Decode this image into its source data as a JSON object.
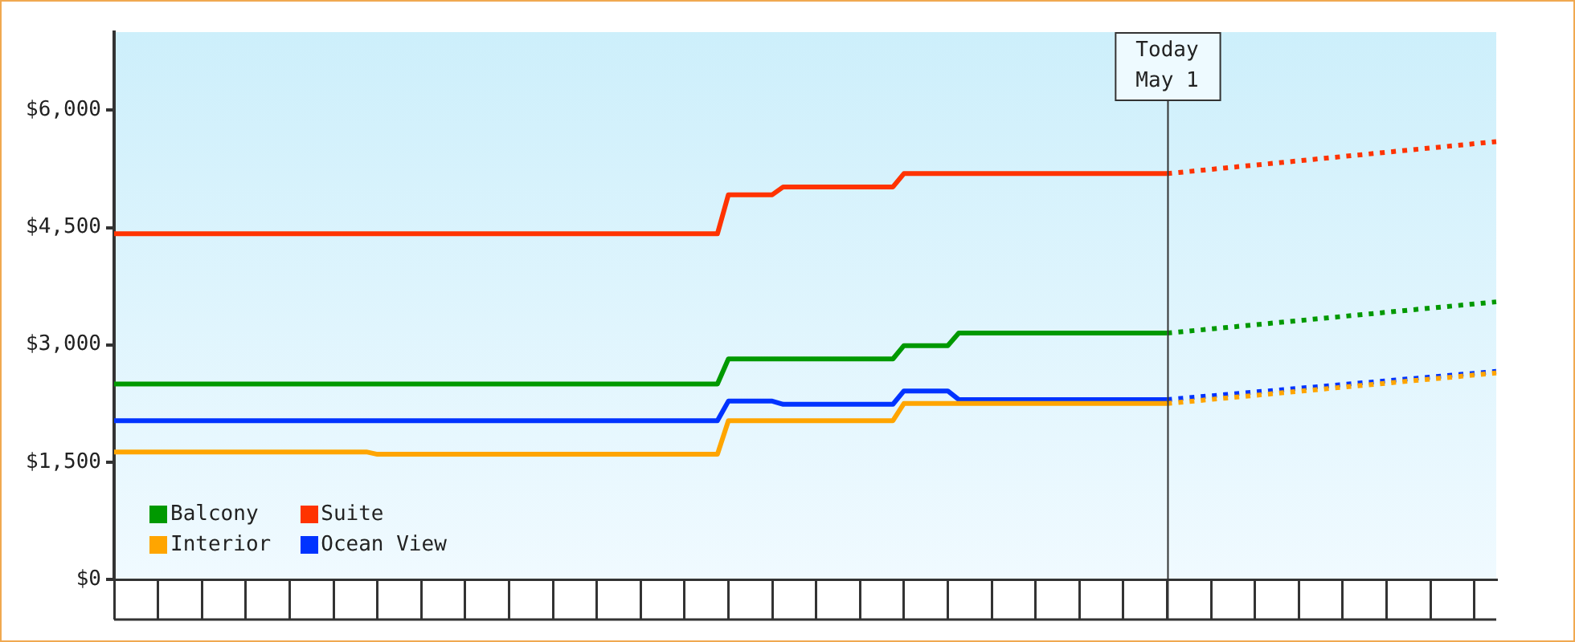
{
  "chart_data": {
    "type": "line",
    "categories": [
      null,
      null,
      null,
      null,
      null,
      null,
      null,
      null,
      null,
      null,
      null,
      null,
      null,
      null,
      null,
      null,
      null,
      null,
      null,
      null,
      null,
      null,
      null,
      null,
      null,
      null,
      null,
      null,
      null,
      null,
      null,
      null,
      null,
      null,
      null,
      null,
      null,
      null,
      null,
      null,
      null,
      null,
      null,
      null,
      null,
      null,
      null,
      null,
      null,
      null,
      null,
      null,
      null,
      null,
      null,
      null,
      null,
      null,
      null,
      null,
      null,
      null,
      null,
      null,
      null,
      null,
      null,
      null,
      null,
      null,
      null,
      null,
      null,
      null,
      null,
      null,
      null,
      null,
      null,
      null,
      null,
      null,
      null,
      null,
      null,
      null,
      null,
      null,
      null,
      null,
      null,
      null,
      null,
      null,
      null,
      null,
      null,
      null,
      null,
      null,
      null,
      null,
      null,
      null,
      null,
      null,
      null,
      null,
      null,
      null,
      null,
      null,
      null,
      null,
      null,
      null,
      null,
      null,
      null,
      null,
      null,
      null,
      null,
      null,
      null,
      null,
      null
    ],
    "ylim": [
      0,
      7000
    ],
    "yticks": [
      {
        "value": 0,
        "label": "$0"
      },
      {
        "value": 1500,
        "label": "$1,500"
      },
      {
        "value": 3000,
        "label": "$3,000"
      },
      {
        "value": 4500,
        "label": "$4,500"
      },
      {
        "value": 6000,
        "label": "$6,000"
      }
    ],
    "tick_labels": "y",
    "legend": "bottom left",
    "series": [
      {
        "name": "Balcony",
        "color": "#009900",
        "values": [
          2500,
          2500,
          2500,
          2500,
          2500,
          2500,
          2500,
          2500,
          2500,
          2500,
          2500,
          2500,
          2500,
          2500,
          2500,
          2500,
          2500,
          2500,
          2500,
          2500,
          2500,
          2500,
          2500,
          2500,
          2500,
          2500,
          2500,
          2500,
          2500,
          2500,
          2500,
          2500,
          2500,
          2500,
          2500,
          2500,
          2500,
          2500,
          2500,
          2500,
          2500,
          2500,
          2500,
          2500,
          2500,
          2500,
          2500,
          2500,
          2500,
          2500,
          2500,
          2500,
          2500,
          2500,
          2500,
          2500,
          2820,
          2820,
          2820,
          2820,
          2820,
          2820,
          2820,
          2820,
          2820,
          2820,
          2820,
          2820,
          2820,
          2820,
          2820,
          2820,
          2990,
          2990,
          2990,
          2990,
          2990,
          3150,
          3150,
          3150,
          3150,
          3150,
          3150,
          3150,
          3150,
          3150,
          3150,
          3150,
          3150,
          3150,
          3150,
          3150,
          3150,
          3150,
          3150,
          3150,
          3150,
          null,
          null,
          null,
          null,
          null,
          null,
          null,
          null,
          null,
          null,
          null,
          null,
          null,
          null,
          null,
          null,
          null,
          null,
          null,
          null,
          null,
          null,
          null,
          null,
          null,
          null,
          null,
          null,
          null,
          null
        ]
      },
      {
        "name": "Suite",
        "color": "#ff3300",
        "values": [
          4420,
          4420,
          4420,
          4420,
          4420,
          4420,
          4420,
          4420,
          4420,
          4420,
          4420,
          4420,
          4420,
          4420,
          4420,
          4420,
          4420,
          4420,
          4420,
          4420,
          4420,
          4420,
          4420,
          4420,
          4420,
          4420,
          4420,
          4420,
          4420,
          4420,
          4420,
          4420,
          4420,
          4420,
          4420,
          4420,
          4420,
          4420,
          4420,
          4420,
          4420,
          4420,
          4420,
          4420,
          4420,
          4420,
          4420,
          4420,
          4420,
          4420,
          4420,
          4420,
          4420,
          4420,
          4420,
          4420,
          4920,
          4920,
          4920,
          4920,
          4920,
          5020,
          5020,
          5020,
          5020,
          5020,
          5020,
          5020,
          5020,
          5020,
          5020,
          5020,
          5190,
          5190,
          5190,
          5190,
          5190,
          5190,
          5190,
          5190,
          5190,
          5190,
          5190,
          5190,
          5190,
          5190,
          5190,
          5190,
          5190,
          5190,
          5190,
          5190,
          5190,
          5190,
          5190,
          5190,
          5190,
          null,
          null,
          null,
          null,
          null,
          null,
          null,
          null,
          null,
          null,
          null,
          null,
          null,
          null,
          null,
          null,
          null,
          null,
          null,
          null,
          null,
          null,
          null,
          null,
          null,
          null,
          null,
          null,
          null,
          null
        ]
      },
      {
        "name": "Interior",
        "color": "#ffa500",
        "values": [
          1630,
          1630,
          1630,
          1630,
          1630,
          1630,
          1630,
          1630,
          1630,
          1630,
          1630,
          1630,
          1630,
          1630,
          1630,
          1630,
          1630,
          1630,
          1630,
          1630,
          1630,
          1630,
          1630,
          1630,
          1600,
          1600,
          1600,
          1600,
          1600,
          1600,
          1600,
          1600,
          1600,
          1600,
          1600,
          1600,
          1600,
          1600,
          1600,
          1600,
          1600,
          1600,
          1600,
          1600,
          1600,
          1600,
          1600,
          1600,
          1600,
          1600,
          1600,
          1600,
          1600,
          1600,
          1600,
          1600,
          2030,
          2030,
          2030,
          2030,
          2030,
          2030,
          2030,
          2030,
          2030,
          2030,
          2030,
          2030,
          2030,
          2030,
          2030,
          2030,
          2250,
          2250,
          2250,
          2250,
          2250,
          2250,
          2250,
          2250,
          2250,
          2250,
          2250,
          2250,
          2250,
          2250,
          2250,
          2250,
          2250,
          2250,
          2250,
          2250,
          2250,
          2250,
          2250,
          2250,
          2250,
          null,
          null,
          null,
          null,
          null,
          null,
          null,
          null,
          null,
          null,
          null,
          null,
          null,
          null,
          null,
          null,
          null,
          null,
          null,
          null,
          null,
          null,
          null,
          null,
          null,
          null,
          null,
          null,
          null,
          null
        ]
      },
      {
        "name": "Ocean View",
        "color": "#0033ff",
        "values": [
          2030,
          2030,
          2030,
          2030,
          2030,
          2030,
          2030,
          2030,
          2030,
          2030,
          2030,
          2030,
          2030,
          2030,
          2030,
          2030,
          2030,
          2030,
          2030,
          2030,
          2030,
          2030,
          2030,
          2030,
          2030,
          2030,
          2030,
          2030,
          2030,
          2030,
          2030,
          2030,
          2030,
          2030,
          2030,
          2030,
          2030,
          2030,
          2030,
          2030,
          2030,
          2030,
          2030,
          2030,
          2030,
          2030,
          2030,
          2030,
          2030,
          2030,
          2030,
          2030,
          2030,
          2030,
          2030,
          2030,
          2280,
          2280,
          2280,
          2280,
          2280,
          2240,
          2240,
          2240,
          2240,
          2240,
          2240,
          2240,
          2240,
          2240,
          2240,
          2240,
          2410,
          2410,
          2410,
          2410,
          2410,
          2300,
          2300,
          2300,
          2300,
          2300,
          2300,
          2300,
          2300,
          2300,
          2300,
          2300,
          2300,
          2300,
          2300,
          2300,
          2300,
          2300,
          2300,
          2300,
          2300,
          null,
          null,
          null,
          null,
          null,
          null,
          null,
          null,
          null,
          null,
          null,
          null,
          null,
          null,
          null,
          null,
          null,
          null,
          null,
          null,
          null,
          null,
          null,
          null,
          null,
          null,
          null,
          null,
          null,
          null
        ]
      },
      {
        "color": "#009900",
        "line_style": "dotted",
        "values": [
          null,
          null,
          null,
          null,
          null,
          null,
          null,
          null,
          null,
          null,
          null,
          null,
          null,
          null,
          null,
          null,
          null,
          null,
          null,
          null,
          null,
          null,
          null,
          null,
          null,
          null,
          null,
          null,
          null,
          null,
          null,
          null,
          null,
          null,
          null,
          null,
          null,
          null,
          null,
          null,
          null,
          null,
          null,
          null,
          null,
          null,
          null,
          null,
          null,
          null,
          null,
          null,
          null,
          null,
          null,
          null,
          null,
          null,
          null,
          null,
          null,
          null,
          null,
          null,
          null,
          null,
          null,
          null,
          null,
          null,
          null,
          null,
          null,
          null,
          null,
          null,
          null,
          null,
          null,
          null,
          null,
          null,
          null,
          null,
          null,
          null,
          null,
          null,
          null,
          null,
          null,
          null,
          null,
          null,
          null,
          null,
          3150,
          null,
          null,
          null,
          null,
          null,
          null,
          null,
          null,
          null,
          null,
          null,
          null,
          null,
          null,
          null,
          null,
          null,
          null,
          null,
          null,
          null,
          null,
          null,
          null,
          null,
          null,
          null,
          null,
          null,
          3550
        ]
      },
      {
        "color": "#ff3300",
        "line_style": "dotted",
        "values": [
          null,
          null,
          null,
          null,
          null,
          null,
          null,
          null,
          null,
          null,
          null,
          null,
          null,
          null,
          null,
          null,
          null,
          null,
          null,
          null,
          null,
          null,
          null,
          null,
          null,
          null,
          null,
          null,
          null,
          null,
          null,
          null,
          null,
          null,
          null,
          null,
          null,
          null,
          null,
          null,
          null,
          null,
          null,
          null,
          null,
          null,
          null,
          null,
          null,
          null,
          null,
          null,
          null,
          null,
          null,
          null,
          null,
          null,
          null,
          null,
          null,
          null,
          null,
          null,
          null,
          null,
          null,
          null,
          null,
          null,
          null,
          null,
          null,
          null,
          null,
          null,
          null,
          null,
          null,
          null,
          null,
          null,
          null,
          null,
          null,
          null,
          null,
          null,
          null,
          null,
          null,
          null,
          null,
          null,
          null,
          null,
          5190,
          null,
          null,
          null,
          null,
          null,
          null,
          null,
          null,
          null,
          null,
          null,
          null,
          null,
          null,
          null,
          null,
          null,
          null,
          null,
          null,
          null,
          null,
          null,
          null,
          null,
          null,
          null,
          null,
          null,
          5600
        ]
      },
      {
        "color": "#ffa500",
        "line_style": "dotted",
        "values": [
          null,
          null,
          null,
          null,
          null,
          null,
          null,
          null,
          null,
          null,
          null,
          null,
          null,
          null,
          null,
          null,
          null,
          null,
          null,
          null,
          null,
          null,
          null,
          null,
          null,
          null,
          null,
          null,
          null,
          null,
          null,
          null,
          null,
          null,
          null,
          null,
          null,
          null,
          null,
          null,
          null,
          null,
          null,
          null,
          null,
          null,
          null,
          null,
          null,
          null,
          null,
          null,
          null,
          null,
          null,
          null,
          null,
          null,
          null,
          null,
          null,
          null,
          null,
          null,
          null,
          null,
          null,
          null,
          null,
          null,
          null,
          null,
          null,
          null,
          null,
          null,
          null,
          null,
          null,
          null,
          null,
          null,
          null,
          null,
          null,
          null,
          null,
          null,
          null,
          null,
          null,
          null,
          null,
          null,
          null,
          null,
          2250,
          null,
          null,
          null,
          null,
          null,
          null,
          null,
          null,
          null,
          null,
          null,
          null,
          null,
          null,
          null,
          null,
          null,
          null,
          null,
          null,
          null,
          null,
          null,
          null,
          null,
          null,
          null,
          null,
          null,
          2640
        ]
      },
      {
        "color": "#0033ff",
        "line_style": "dotted",
        "values": [
          null,
          null,
          null,
          null,
          null,
          null,
          null,
          null,
          null,
          null,
          null,
          null,
          null,
          null,
          null,
          null,
          null,
          null,
          null,
          null,
          null,
          null,
          null,
          null,
          null,
          null,
          null,
          null,
          null,
          null,
          null,
          null,
          null,
          null,
          null,
          null,
          null,
          null,
          null,
          null,
          null,
          null,
          null,
          null,
          null,
          null,
          null,
          null,
          null,
          null,
          null,
          null,
          null,
          null,
          null,
          null,
          null,
          null,
          null,
          null,
          null,
          null,
          null,
          null,
          null,
          null,
          null,
          null,
          null,
          null,
          null,
          null,
          null,
          null,
          null,
          null,
          null,
          null,
          null,
          null,
          null,
          null,
          null,
          null,
          null,
          null,
          null,
          null,
          null,
          null,
          null,
          null,
          null,
          null,
          null,
          null,
          2300,
          null,
          null,
          null,
          null,
          null,
          null,
          null,
          null,
          null,
          null,
          null,
          null,
          null,
          null,
          null,
          null,
          null,
          null,
          null,
          null,
          null,
          null,
          null,
          null,
          null,
          null,
          null,
          null,
          null,
          2660
        ]
      }
    ],
    "annotations": [
      "Today\nMay 1"
    ]
  }
}
